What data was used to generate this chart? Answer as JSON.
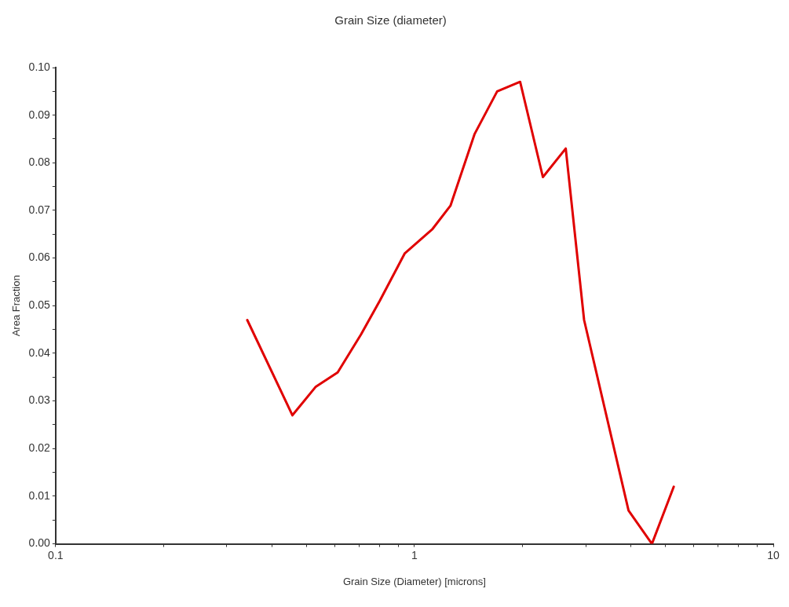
{
  "chart_data": {
    "type": "line",
    "title": "Grain Size (diameter)",
    "xlabel": "Grain Size (Diameter) [microns]",
    "ylabel": "Area Fraction",
    "x": [
      0.342,
      0.457,
      0.531,
      0.611,
      0.71,
      0.8,
      0.94,
      1.12,
      1.26,
      1.47,
      1.7,
      1.97,
      2.28,
      2.64,
      2.97,
      3.95,
      4.59,
      5.28
    ],
    "series": [
      {
        "color": "#e00000",
        "values": [
          0.047,
          0.027,
          0.033,
          0.036,
          0.044,
          0.051,
          0.061,
          0.066,
          0.071,
          0.086,
          0.095,
          0.097,
          0.077,
          0.083,
          0.047,
          0.007,
          0.0,
          0.012
        ]
      }
    ],
    "log": "x",
    "xlim": [
      0.1,
      10
    ],
    "xticks": [
      0.1,
      {
        "value": 0.2,
        "label": null
      },
      {
        "value": 0.3,
        "label": null
      },
      {
        "value": 0.4,
        "label": null
      },
      {
        "value": 0.5,
        "label": null
      },
      {
        "value": 0.6,
        "label": null
      },
      {
        "value": 0.7,
        "label": null
      },
      {
        "value": 0.8,
        "label": null
      },
      {
        "value": 0.9,
        "label": null
      },
      1,
      {
        "value": 2,
        "label": null
      },
      {
        "value": 3,
        "label": null
      },
      {
        "value": 4,
        "label": null
      },
      {
        "value": 5,
        "label": null
      },
      {
        "value": 6,
        "label": null
      },
      {
        "value": 7,
        "label": null
      },
      {
        "value": 8,
        "label": null
      },
      {
        "value": 9,
        "label": null
      },
      10
    ],
    "ylim": [
      0,
      0.1
    ],
    "yticks": [
      {
        "value": 0,
        "label": "0.00"
      },
      {
        "value": 0.005,
        "label": null
      },
      {
        "value": 0.01,
        "label": "0.01"
      },
      {
        "value": 0.015,
        "label": null
      },
      {
        "value": 0.02,
        "label": "0.02"
      },
      {
        "value": 0.025,
        "label": null
      },
      {
        "value": 0.03,
        "label": "0.03"
      },
      {
        "value": 0.035,
        "label": null
      },
      {
        "value": 0.04,
        "label": "0.04"
      },
      {
        "value": 0.045,
        "label": null
      },
      {
        "value": 0.05,
        "label": "0.05"
      },
      {
        "value": 0.055,
        "label": null
      },
      {
        "value": 0.06,
        "label": "0.06"
      },
      {
        "value": 0.065,
        "label": null
      },
      {
        "value": 0.07,
        "label": "0.07"
      },
      {
        "value": 0.075,
        "label": null
      },
      {
        "value": 0.08,
        "label": "0.08"
      },
      {
        "value": 0.085,
        "label": null
      },
      {
        "value": 0.09,
        "label": "0.09"
      },
      {
        "value": 0.095,
        "label": null
      },
      {
        "value": 0.1,
        "label": "0.10"
      }
    ],
    "grid": false,
    "legend": false,
    "marker": "none",
    "line_style": "solid"
  }
}
